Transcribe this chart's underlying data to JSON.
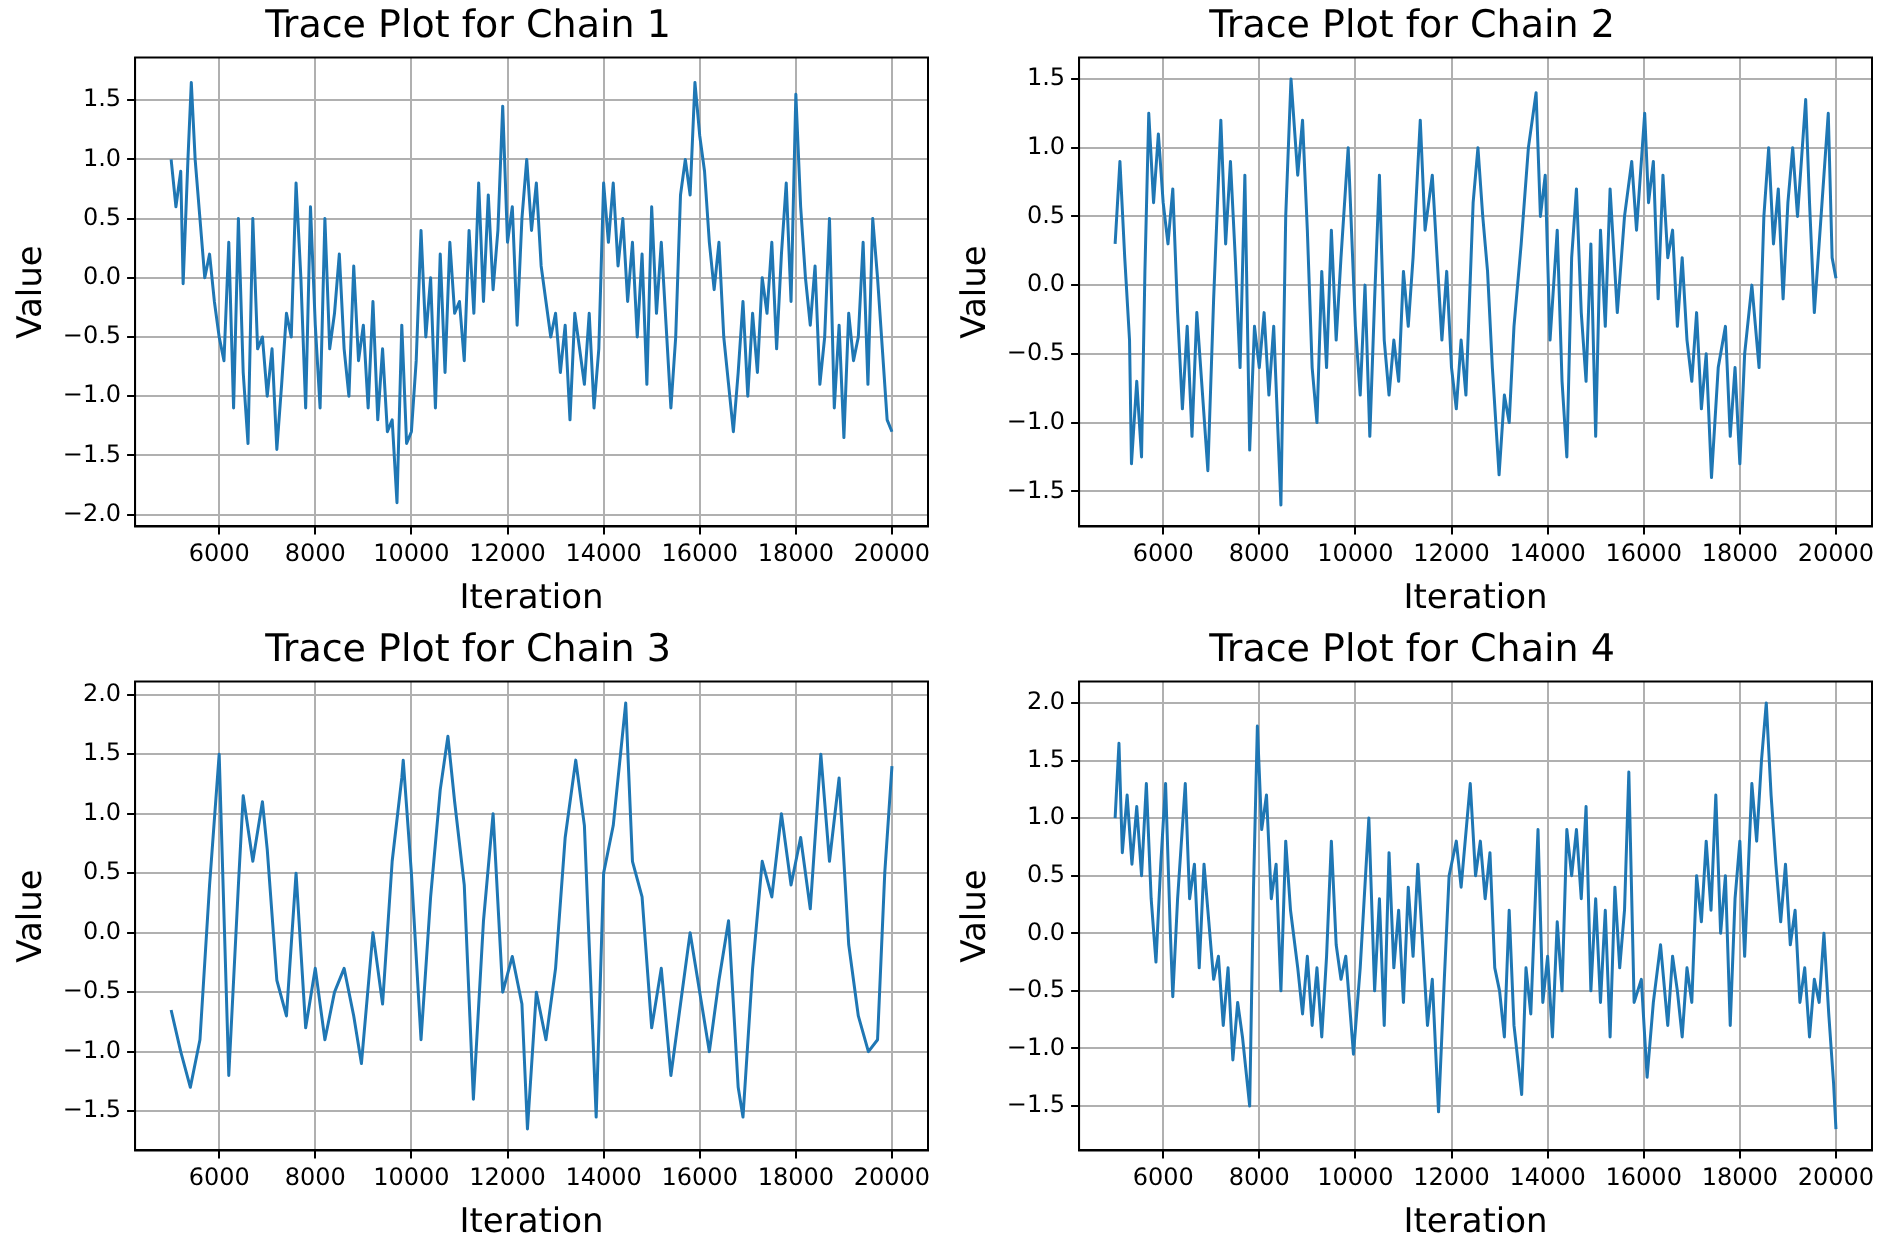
{
  "chart_data": [
    {
      "type": "line",
      "title": "Trace Plot for Chain 1",
      "xlabel": "Iteration",
      "ylabel": "Value",
      "color": "#1f77b4",
      "grid": true,
      "xlim": [
        4250,
        20750
      ],
      "xticks": [
        6000,
        8000,
        10000,
        12000,
        14000,
        16000,
        18000,
        20000
      ],
      "ylim": [
        -2.1,
        1.86
      ],
      "yticks": [
        {
          "value": -2,
          "label": "−2.0"
        },
        {
          "value": -1.5,
          "label": "−1.5"
        },
        {
          "value": -1,
          "label": "−1.0"
        },
        {
          "value": -0.5,
          "label": "−0.5"
        },
        {
          "value": 0,
          "label": "0.0"
        },
        {
          "value": 0.5,
          "label": "0.5"
        },
        {
          "value": 1,
          "label": "1.0"
        },
        {
          "value": 1.5,
          "label": "1.5"
        }
      ],
      "x": [
        5000,
        5100,
        5200,
        5250,
        5350,
        5420,
        5500,
        5600,
        5700,
        5800,
        5900,
        6000,
        6100,
        6200,
        6300,
        6400,
        6500,
        6600,
        6700,
        6800,
        6900,
        7000,
        7100,
        7200,
        7300,
        7400,
        7500,
        7600,
        7700,
        7800,
        7900,
        8000,
        8100,
        8200,
        8300,
        8400,
        8500,
        8600,
        8700,
        8800,
        8900,
        9000,
        9100,
        9200,
        9300,
        9400,
        9500,
        9600,
        9700,
        9800,
        9900,
        10000,
        10100,
        10200,
        10300,
        10400,
        10500,
        10600,
        10700,
        10800,
        10900,
        11000,
        11100,
        11200,
        11300,
        11400,
        11500,
        11600,
        11700,
        11800,
        11900,
        12000,
        12100,
        12200,
        12300,
        12400,
        12500,
        12600,
        12700,
        12800,
        12900,
        13000,
        13100,
        13200,
        13300,
        13400,
        13500,
        13600,
        13700,
        13800,
        13900,
        14000,
        14100,
        14200,
        14300,
        14400,
        14500,
        14600,
        14700,
        14800,
        14900,
        15000,
        15100,
        15200,
        15300,
        15400,
        15500,
        15600,
        15700,
        15800,
        15900,
        16000,
        16100,
        16200,
        16300,
        16400,
        16500,
        16600,
        16700,
        16800,
        16900,
        17000,
        17100,
        17200,
        17300,
        17400,
        17500,
        17600,
        17700,
        17800,
        17900,
        18000,
        18100,
        18200,
        18300,
        18400,
        18500,
        18600,
        18700,
        18800,
        18900,
        19000,
        19100,
        19200,
        19300,
        19400,
        19500,
        19600,
        19700,
        19800,
        19900,
        20000
      ],
      "values": [
        1.0,
        0.6,
        0.9,
        -0.05,
        1.0,
        1.65,
        1.0,
        0.5,
        0.0,
        0.2,
        -0.2,
        -0.5,
        -0.7,
        0.3,
        -1.1,
        0.5,
        -0.8,
        -1.4,
        0.5,
        -0.6,
        -0.5,
        -1.0,
        -0.6,
        -1.45,
        -0.9,
        -0.3,
        -0.5,
        0.8,
        0.0,
        -1.1,
        0.6,
        -0.4,
        -1.1,
        0.5,
        -0.6,
        -0.3,
        0.2,
        -0.6,
        -1.0,
        0.1,
        -0.7,
        -0.4,
        -1.1,
        -0.2,
        -1.2,
        -0.6,
        -1.3,
        -1.2,
        -1.9,
        -0.4,
        -1.4,
        -1.3,
        -0.7,
        0.4,
        -0.5,
        0.0,
        -1.1,
        0.2,
        -0.8,
        0.3,
        -0.3,
        -0.2,
        -0.7,
        0.4,
        -0.3,
        0.8,
        -0.2,
        0.7,
        -0.1,
        0.4,
        1.45,
        0.3,
        0.6,
        -0.4,
        0.5,
        1.0,
        0.4,
        0.8,
        0.1,
        -0.2,
        -0.5,
        -0.3,
        -0.8,
        -0.4,
        -1.2,
        -0.3,
        -0.6,
        -0.9,
        -0.3,
        -1.1,
        -0.6,
        0.8,
        0.3,
        0.8,
        0.1,
        0.5,
        -0.2,
        0.3,
        -0.5,
        0.2,
        -0.9,
        0.6,
        -0.3,
        0.3,
        -0.4,
        -1.1,
        -0.5,
        0.7,
        1.0,
        0.7,
        1.65,
        1.2,
        0.9,
        0.3,
        -0.1,
        0.3,
        -0.5,
        -0.9,
        -1.3,
        -0.8,
        -0.2,
        -1.0,
        -0.3,
        -0.8,
        0.0,
        -0.3,
        0.3,
        -0.6,
        0.2,
        0.8,
        -0.2,
        1.55,
        0.6,
        0.0,
        -0.4,
        0.1,
        -0.9,
        -0.5,
        0.5,
        -1.1,
        -0.4,
        -1.35,
        -0.3,
        -0.7,
        -0.5,
        0.3,
        -0.9,
        0.5,
        0.0,
        -0.6,
        -1.2,
        -1.3
      ]
    },
    {
      "type": "line",
      "title": "Trace Plot for Chain 2",
      "xlabel": "Iteration",
      "ylabel": "Value",
      "color": "#1f77b4",
      "grid": true,
      "xlim": [
        4250,
        20750
      ],
      "xticks": [
        6000,
        8000,
        10000,
        12000,
        14000,
        16000,
        18000,
        20000
      ],
      "ylim": [
        -1.755,
        1.655
      ],
      "yticks": [
        {
          "value": -1.5,
          "label": "−1.5"
        },
        {
          "value": -1,
          "label": "−1.0"
        },
        {
          "value": -0.5,
          "label": "−0.5"
        },
        {
          "value": 0,
          "label": "0.0"
        },
        {
          "value": 0.5,
          "label": "0.5"
        },
        {
          "value": 1,
          "label": "1.0"
        },
        {
          "value": 1.5,
          "label": "1.5"
        }
      ],
      "x": [
        5000,
        5100,
        5200,
        5300,
        5340,
        5450,
        5550,
        5620,
        5700,
        5800,
        5900,
        6000,
        6100,
        6200,
        6300,
        6400,
        6500,
        6600,
        6700,
        6800,
        6930,
        7050,
        7200,
        7300,
        7400,
        7500,
        7600,
        7700,
        7800,
        7900,
        8000,
        8100,
        8200,
        8300,
        8450,
        8550,
        8660,
        8800,
        8900,
        9000,
        9100,
        9200,
        9300,
        9400,
        9500,
        9600,
        9700,
        9850,
        10000,
        10100,
        10200,
        10300,
        10400,
        10500,
        10600,
        10700,
        10800,
        10900,
        11000,
        11100,
        11200,
        11350,
        11450,
        11600,
        11700,
        11800,
        11900,
        12000,
        12100,
        12200,
        12300,
        12450,
        12550,
        12650,
        12750,
        12850,
        12990,
        13100,
        13200,
        13300,
        13450,
        13600,
        13760,
        13850,
        13950,
        14050,
        14200,
        14300,
        14400,
        14500,
        14600,
        14700,
        14800,
        14900,
        15000,
        15100,
        15200,
        15300,
        15450,
        15600,
        15750,
        15850,
        16020,
        16100,
        16200,
        16300,
        16400,
        16500,
        16600,
        16700,
        16800,
        16900,
        17000,
        17100,
        17200,
        17300,
        17410,
        17550,
        17700,
        17800,
        17900,
        18000,
        18100,
        18250,
        18400,
        18500,
        18600,
        18700,
        18800,
        18900,
        19000,
        19100,
        19200,
        19370,
        19450,
        19550,
        19650,
        19750,
        19840,
        19920,
        20000
      ],
      "values": [
        0.3,
        0.9,
        0.2,
        -0.4,
        -1.3,
        -0.7,
        -1.25,
        0.1,
        1.25,
        0.6,
        1.1,
        0.6,
        0.3,
        0.7,
        -0.2,
        -0.9,
        -0.3,
        -1.1,
        -0.2,
        -0.7,
        -1.35,
        -0.1,
        1.2,
        0.3,
        0.9,
        0.2,
        -0.6,
        0.8,
        -1.2,
        -0.3,
        -0.6,
        -0.2,
        -0.8,
        -0.3,
        -1.6,
        0.5,
        1.5,
        0.8,
        1.2,
        0.4,
        -0.6,
        -1.0,
        0.1,
        -0.6,
        0.4,
        -0.4,
        0.2,
        1.0,
        -0.3,
        -0.8,
        0.0,
        -1.1,
        -0.1,
        0.8,
        -0.4,
        -0.8,
        -0.4,
        -0.7,
        0.1,
        -0.3,
        0.2,
        1.2,
        0.4,
        0.8,
        0.2,
        -0.4,
        0.1,
        -0.6,
        -0.9,
        -0.4,
        -0.8,
        0.6,
        1.0,
        0.5,
        0.1,
        -0.6,
        -1.38,
        -0.8,
        -1.0,
        -0.3,
        0.3,
        1.0,
        1.4,
        0.5,
        0.8,
        -0.4,
        0.4,
        -0.7,
        -1.25,
        0.2,
        0.7,
        -0.2,
        -0.7,
        0.3,
        -1.1,
        0.4,
        -0.3,
        0.7,
        -0.2,
        0.5,
        0.9,
        0.4,
        1.25,
        0.6,
        0.9,
        -0.1,
        0.8,
        0.2,
        0.4,
        -0.3,
        0.2,
        -0.4,
        -0.7,
        -0.2,
        -0.9,
        -0.5,
        -1.4,
        -0.6,
        -0.3,
        -1.1,
        -0.6,
        -1.3,
        -0.5,
        0.0,
        -0.6,
        0.5,
        1.0,
        0.3,
        0.7,
        -0.1,
        0.6,
        1.0,
        0.5,
        1.35,
        0.6,
        -0.2,
        0.3,
        0.8,
        1.25,
        0.2,
        0.05
      ]
    },
    {
      "type": "line",
      "title": "Trace Plot for Chain 3",
      "xlabel": "Iteration",
      "ylabel": "Value",
      "color": "#1f77b4",
      "grid": true,
      "xlim": [
        4250,
        20750
      ],
      "xticks": [
        6000,
        8000,
        10000,
        12000,
        14000,
        16000,
        18000,
        20000
      ],
      "ylim": [
        -1.83,
        2.11
      ],
      "yticks": [
        {
          "value": -1.5,
          "label": "−1.5"
        },
        {
          "value": -1,
          "label": "−1.0"
        },
        {
          "value": -0.5,
          "label": "−0.5"
        },
        {
          "value": 0,
          "label": "0.0"
        },
        {
          "value": 0.5,
          "label": "0.5"
        },
        {
          "value": 1,
          "label": "1.0"
        },
        {
          "value": 1.5,
          "label": "1.5"
        },
        {
          "value": 2,
          "label": "2.0"
        }
      ],
      "x": [
        5000,
        5200,
        5400,
        5600,
        5800,
        6000,
        6200,
        6400,
        6500,
        6700,
        6900,
        7000,
        7200,
        7400,
        7600,
        7800,
        8000,
        8200,
        8400,
        8600,
        8800,
        8960,
        9200,
        9400,
        9600,
        9800,
        9830,
        10000,
        10200,
        10400,
        10600,
        10760,
        10900,
        11100,
        11290,
        11500,
        11700,
        11900,
        12100,
        12300,
        12415,
        12600,
        12800,
        13000,
        13200,
        13420,
        13600,
        13845,
        14000,
        14200,
        14460,
        14600,
        14800,
        15000,
        15200,
        15400,
        15600,
        15800,
        16000,
        16200,
        16400,
        16600,
        16800,
        16900,
        17100,
        17300,
        17500,
        17700,
        17900,
        18100,
        18300,
        18520,
        18700,
        18900,
        19100,
        19300,
        19510,
        19700,
        19850,
        20000
      ],
      "values": [
        -0.65,
        -1.0,
        -1.3,
        -0.9,
        0.4,
        1.5,
        -1.2,
        0.4,
        1.15,
        0.6,
        1.1,
        0.7,
        -0.4,
        -0.7,
        0.5,
        -0.8,
        -0.3,
        -0.9,
        -0.5,
        -0.3,
        -0.7,
        -1.1,
        0.0,
        -0.6,
        0.6,
        1.3,
        1.45,
        0.5,
        -0.9,
        0.3,
        1.2,
        1.65,
        1.1,
        0.4,
        -1.4,
        0.1,
        1.0,
        -0.5,
        -0.2,
        -0.6,
        -1.65,
        -0.5,
        -0.9,
        -0.3,
        0.8,
        1.45,
        0.9,
        -1.55,
        0.5,
        0.9,
        1.93,
        0.6,
        0.3,
        -0.8,
        -0.3,
        -1.2,
        -0.6,
        0.0,
        -0.5,
        -1.0,
        -0.4,
        0.1,
        -1.3,
        -1.55,
        -0.3,
        0.6,
        0.3,
        1.0,
        0.4,
        0.8,
        0.2,
        1.5,
        0.6,
        1.3,
        -0.1,
        -0.7,
        -1.0,
        -0.9,
        0.5,
        1.4
      ]
    },
    {
      "type": "line",
      "title": "Trace Plot for Chain 4",
      "xlabel": "Iteration",
      "ylabel": "Value",
      "color": "#1f77b4",
      "grid": true,
      "xlim": [
        4250,
        20750
      ],
      "xticks": [
        6000,
        8000,
        10000,
        12000,
        14000,
        16000,
        18000,
        20000
      ],
      "ylim": [
        -1.885,
        2.185
      ],
      "yticks": [
        {
          "value": -1.5,
          "label": "−1.5"
        },
        {
          "value": -1,
          "label": "−1.0"
        },
        {
          "value": -0.5,
          "label": "−0.5"
        },
        {
          "value": 0,
          "label": "0.0"
        },
        {
          "value": 0.5,
          "label": "0.5"
        },
        {
          "value": 1,
          "label": "1.0"
        },
        {
          "value": 1.5,
          "label": "1.5"
        },
        {
          "value": 2,
          "label": "2.0"
        }
      ],
      "x": [
        5000,
        5080,
        5150,
        5250,
        5350,
        5450,
        5550,
        5650,
        5750,
        5850,
        5950,
        6050,
        6150,
        6200,
        6300,
        6460,
        6550,
        6650,
        6750,
        6850,
        6950,
        7050,
        7150,
        7250,
        7350,
        7450,
        7550,
        7650,
        7800,
        7880,
        7960,
        8050,
        8150,
        8250,
        8350,
        8450,
        8550,
        8650,
        8800,
        8900,
        9000,
        9100,
        9200,
        9300,
        9400,
        9500,
        9600,
        9700,
        9800,
        9960,
        10100,
        10280,
        10400,
        10500,
        10600,
        10700,
        10800,
        10900,
        11000,
        11100,
        11200,
        11300,
        11400,
        11500,
        11600,
        11730,
        11850,
        11950,
        12100,
        12200,
        12390,
        12500,
        12600,
        12700,
        12800,
        12900,
        13000,
        13100,
        13200,
        13300,
        13460,
        13550,
        13650,
        13800,
        13900,
        14000,
        14100,
        14200,
        14300,
        14400,
        14500,
        14600,
        14700,
        14800,
        14900,
        15000,
        15100,
        15200,
        15300,
        15400,
        15500,
        15600,
        15690,
        15800,
        15950,
        16070,
        16200,
        16350,
        16500,
        16600,
        16700,
        16800,
        16900,
        17000,
        17100,
        17200,
        17300,
        17400,
        17500,
        17600,
        17700,
        17800,
        17900,
        18000,
        18100,
        18250,
        18350,
        18450,
        18550,
        18650,
        18750,
        18850,
        18950,
        19050,
        19150,
        19250,
        19350,
        19450,
        19550,
        19650,
        19750,
        19850,
        19950,
        20000
      ],
      "values": [
        1.0,
        1.65,
        0.7,
        1.2,
        0.6,
        1.1,
        0.5,
        1.3,
        0.3,
        -0.25,
        0.6,
        1.3,
        0.0,
        -0.55,
        0.3,
        1.3,
        0.3,
        0.6,
        -0.3,
        0.6,
        0.1,
        -0.4,
        -0.2,
        -0.8,
        -0.3,
        -1.1,
        -0.6,
        -0.9,
        -1.5,
        0.4,
        1.8,
        0.9,
        1.2,
        0.3,
        0.6,
        -0.5,
        0.8,
        0.2,
        -0.3,
        -0.7,
        -0.2,
        -0.8,
        -0.3,
        -0.9,
        -0.2,
        0.8,
        -0.1,
        -0.4,
        -0.2,
        -1.05,
        -0.3,
        1.0,
        -0.5,
        0.3,
        -0.8,
        0.7,
        -0.3,
        0.2,
        -0.6,
        0.4,
        -0.2,
        0.6,
        -0.1,
        -0.8,
        -0.4,
        -1.55,
        -0.4,
        0.5,
        0.8,
        0.4,
        1.3,
        0.5,
        0.8,
        0.3,
        0.7,
        -0.3,
        -0.5,
        -0.9,
        0.2,
        -0.8,
        -1.4,
        -0.3,
        -0.7,
        0.9,
        -0.6,
        -0.2,
        -0.9,
        0.1,
        -0.5,
        0.9,
        0.5,
        0.9,
        0.3,
        1.1,
        -0.5,
        0.3,
        -0.6,
        0.2,
        -0.9,
        0.4,
        -0.3,
        0.2,
        1.4,
        -0.6,
        -0.4,
        -1.25,
        -0.6,
        -0.1,
        -0.8,
        -0.2,
        -0.5,
        -0.9,
        -0.3,
        -0.6,
        0.5,
        0.1,
        0.8,
        0.2,
        1.2,
        0.0,
        0.5,
        -0.8,
        0.3,
        0.8,
        -0.2,
        1.3,
        0.8,
        1.5,
        2.0,
        1.2,
        0.6,
        0.1,
        0.6,
        -0.1,
        0.2,
        -0.6,
        -0.3,
        -0.9,
        -0.4,
        -0.6,
        0.0,
        -0.7,
        -1.3,
        -1.7
      ]
    }
  ]
}
